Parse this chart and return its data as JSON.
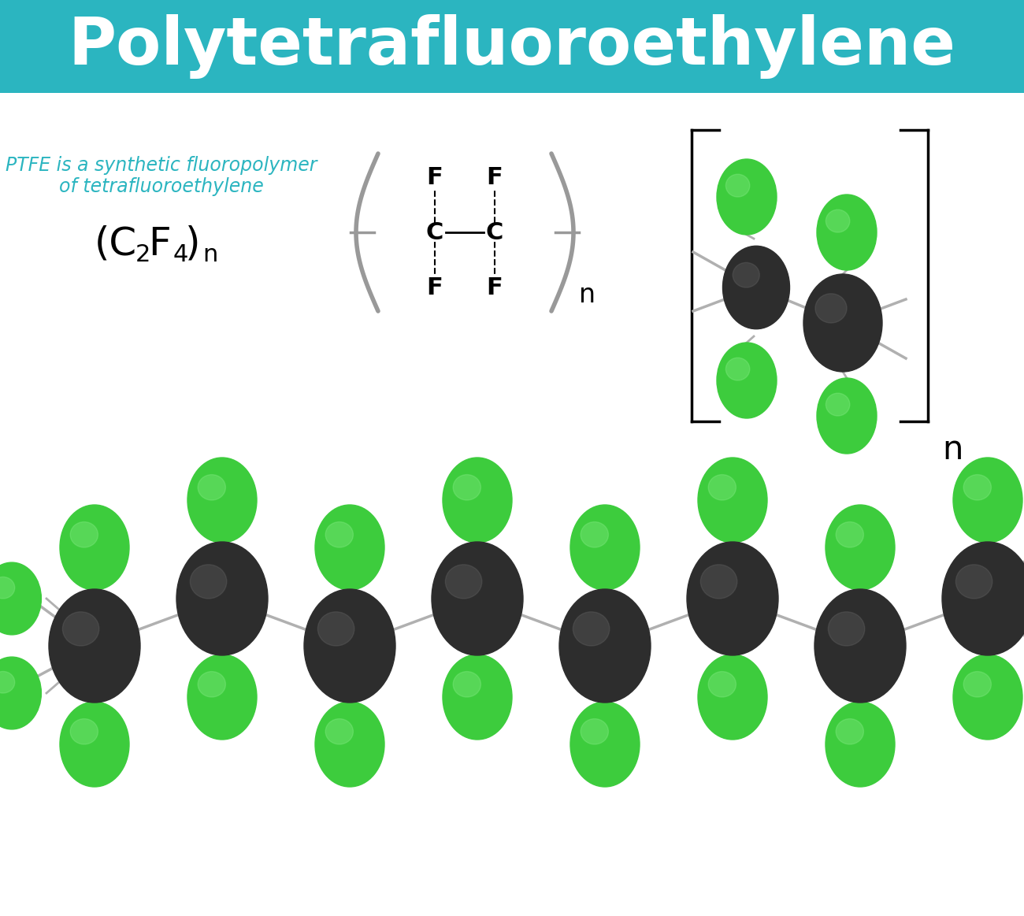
{
  "title": "Polytetrafluoroethylene",
  "title_color": "white",
  "header_bg": "#2BB5C0",
  "bg_color": "white",
  "subtitle_line1": "PTFE is a synthetic fluoropolymer",
  "subtitle_line2": "of tetrafluoroethylene",
  "subtitle_color": "#2BB5C0",
  "carbon_color": "#2d2d2d",
  "carbon_grad_high": "#555555",
  "fluorine_color": "#3dcc3d",
  "fluorine_grad_high": "#88ee88",
  "bond_color": "#b0b0b0",
  "bracket_color": "#888888",
  "struct_bracket_color": "#999999",
  "formula_color": "black"
}
